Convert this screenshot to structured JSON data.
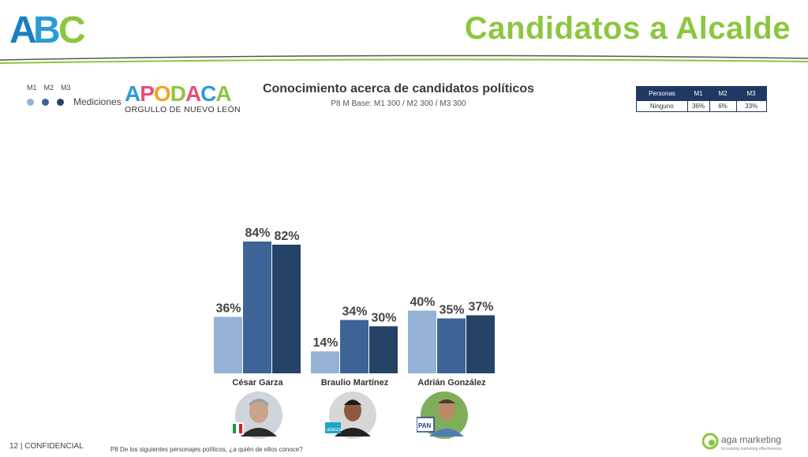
{
  "header": {
    "brand": "ABC",
    "title": "Candidatos a Alcalde"
  },
  "legend": {
    "labels": [
      "M1",
      "M2",
      "M3"
    ],
    "text": "Mediciones",
    "colors": [
      "#95b3d7",
      "#3c6497",
      "#254367"
    ]
  },
  "municipality_logo": {
    "name": "APODACA",
    "tagline": "ORGULLO DE NUEVO LEÓN"
  },
  "chart_data": {
    "type": "bar",
    "title": "Conocimiento acerca de candidatos políticos",
    "subtitle": "P8 M Base: M1 300 / M2 300 / M3 300",
    "categories": [
      "César Garza",
      "Braulio Martínez",
      "Adrián González"
    ],
    "series": [
      {
        "name": "M1",
        "values": [
          36,
          14,
          40
        ],
        "color": "#95b3d7"
      },
      {
        "name": "M2",
        "values": [
          84,
          34,
          35
        ],
        "color": "#3c6497"
      },
      {
        "name": "M3",
        "values": [
          82,
          30,
          37
        ],
        "color": "#254367"
      }
    ],
    "value_suffix": "%",
    "ylim": [
      0,
      100
    ],
    "grid": false
  },
  "table": {
    "headers": [
      "Personas",
      "M1",
      "M2",
      "M3"
    ],
    "rows": [
      [
        "Ninguno",
        "36%",
        "6%",
        "33%"
      ]
    ]
  },
  "candidates": [
    {
      "party": "PRI"
    },
    {
      "party": "alianza"
    },
    {
      "party": "PAN"
    }
  ],
  "footer": {
    "page": "12  | CONFIDENCIAL",
    "question": "P8 De los siguientes personajes políticos, ¿a quién de ellos conoce?",
    "company": "aga marketing",
    "company_tagline": "Increasing marketing effectiveness"
  }
}
